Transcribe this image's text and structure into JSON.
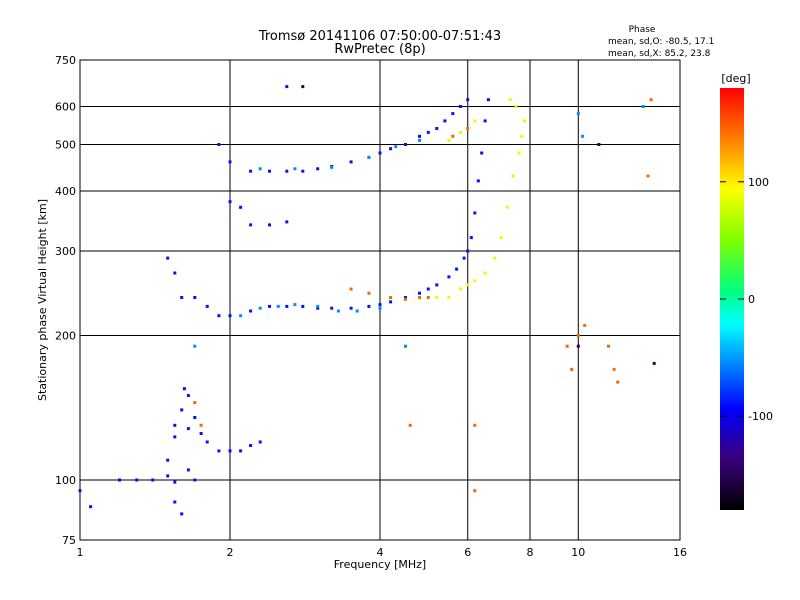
{
  "chart_data": {
    "type": "scatter",
    "title": "Tromsø 20141106 07:50:00-07:51:43",
    "subtitle": "RwPretec (8p)",
    "phase_stats": {
      "header": "Phase",
      "line_o": "mean, sd,O: -80.5, 17.1",
      "line_x": "mean, sd,X:  85.2, 23.8"
    },
    "xlabel": "Frequency [MHz]",
    "ylabel": "Stationary phase Virtual Height [km]",
    "x_scale": "log",
    "y_scale": "log",
    "xlim": [
      1,
      16
    ],
    "ylim": [
      75,
      750
    ],
    "x_ticks": [
      1,
      2,
      4,
      6,
      8,
      10,
      16
    ],
    "x_tick_labels": [
      "1",
      "2",
      "4",
      "6",
      "8",
      "10",
      "16"
    ],
    "y_ticks": [
      75,
      100,
      200,
      300,
      400,
      500,
      600,
      750
    ],
    "y_tick_labels": [
      "75",
      "100",
      "200",
      "300",
      "400",
      "500",
      "600",
      "750"
    ],
    "grid": true,
    "colorbar": {
      "label": "[deg]",
      "range": [
        -180,
        180
      ],
      "ticks": [
        100,
        0,
        -100
      ],
      "tick_labels": [
        "100",
        "0",
        "-100"
      ],
      "colormap": "rainbow"
    },
    "series": [
      {
        "color_deg": -95,
        "points": [
          [
            1.0,
            95
          ],
          [
            1.05,
            88
          ],
          [
            1.2,
            100
          ],
          [
            1.3,
            100
          ],
          [
            1.4,
            100
          ],
          [
            1.5,
            102
          ],
          [
            1.55,
            99
          ],
          [
            1.55,
            130
          ],
          [
            1.6,
            140
          ],
          [
            1.62,
            155
          ],
          [
            1.65,
            150
          ],
          [
            1.7,
            135
          ],
          [
            1.75,
            125
          ],
          [
            1.8,
            120
          ],
          [
            1.9,
            115
          ],
          [
            2.0,
            115
          ],
          [
            2.1,
            115
          ],
          [
            2.2,
            118
          ],
          [
            2.3,
            120
          ],
          [
            1.5,
            110
          ],
          [
            1.55,
            90
          ],
          [
            1.6,
            85
          ],
          [
            1.65,
            105
          ],
          [
            1.7,
            100
          ],
          [
            1.55,
            123
          ],
          [
            1.65,
            128
          ],
          [
            1.5,
            290
          ],
          [
            1.55,
            270
          ],
          [
            1.6,
            240
          ],
          [
            1.7,
            240
          ],
          [
            1.8,
            230
          ],
          [
            1.9,
            220
          ],
          [
            2.0,
            220
          ],
          [
            2.2,
            225
          ],
          [
            2.4,
            230
          ],
          [
            2.6,
            230
          ],
          [
            2.8,
            230
          ],
          [
            3.0,
            228
          ],
          [
            3.2,
            228
          ],
          [
            3.5,
            228
          ],
          [
            3.8,
            230
          ],
          [
            4.0,
            232
          ],
          [
            4.2,
            235
          ],
          [
            4.5,
            240
          ],
          [
            4.8,
            245
          ],
          [
            5.0,
            250
          ],
          [
            5.2,
            255
          ],
          [
            5.5,
            265
          ],
          [
            5.7,
            275
          ],
          [
            5.9,
            290
          ],
          [
            6.0,
            300
          ],
          [
            6.1,
            320
          ],
          [
            6.2,
            360
          ],
          [
            6.3,
            420
          ],
          [
            6.4,
            480
          ],
          [
            6.5,
            560
          ],
          [
            6.6,
            620
          ],
          [
            2.0,
            460
          ],
          [
            2.2,
            440
          ],
          [
            2.4,
            440
          ],
          [
            2.6,
            440
          ],
          [
            2.8,
            440
          ],
          [
            3.0,
            445
          ],
          [
            3.2,
            450
          ],
          [
            3.5,
            460
          ],
          [
            3.8,
            470
          ],
          [
            4.0,
            480
          ],
          [
            4.2,
            490
          ],
          [
            4.5,
            500
          ],
          [
            4.8,
            520
          ],
          [
            5.0,
            530
          ],
          [
            5.2,
            540
          ],
          [
            5.4,
            560
          ],
          [
            5.6,
            580
          ],
          [
            5.8,
            600
          ],
          [
            6.0,
            620
          ],
          [
            2.2,
            340
          ],
          [
            2.4,
            340
          ],
          [
            2.6,
            345
          ],
          [
            2.0,
            380
          ],
          [
            2.1,
            370
          ],
          [
            2.6,
            660
          ],
          [
            1.9,
            500
          ]
        ]
      },
      {
        "color_deg": -60,
        "points": [
          [
            2.1,
            220
          ],
          [
            2.3,
            228
          ],
          [
            2.5,
            230
          ],
          [
            2.7,
            232
          ],
          [
            3.0,
            230
          ],
          [
            3.3,
            225
          ],
          [
            3.6,
            225
          ],
          [
            4.0,
            228
          ],
          [
            2.3,
            445
          ],
          [
            2.7,
            445
          ],
          [
            3.2,
            448
          ],
          [
            3.8,
            470
          ],
          [
            4.3,
            495
          ],
          [
            4.8,
            510
          ],
          [
            1.7,
            190
          ],
          [
            4.5,
            190
          ],
          [
            10.0,
            580
          ],
          [
            10.2,
            520
          ],
          [
            13.5,
            600
          ]
        ]
      },
      {
        "color_deg": 110,
        "points": [
          [
            5.5,
            240
          ],
          [
            5.8,
            250
          ],
          [
            6.0,
            255
          ],
          [
            6.2,
            260
          ],
          [
            6.5,
            270
          ],
          [
            6.8,
            290
          ],
          [
            7.0,
            320
          ],
          [
            7.2,
            370
          ],
          [
            7.4,
            430
          ],
          [
            7.6,
            480
          ],
          [
            7.7,
            520
          ],
          [
            7.8,
            560
          ],
          [
            7.5,
            600
          ],
          [
            5.5,
            510
          ],
          [
            5.8,
            530
          ],
          [
            6.2,
            560
          ],
          [
            7.3,
            620
          ],
          [
            5.2,
            240
          ]
        ]
      },
      {
        "color_deg": 150,
        "points": [
          [
            3.5,
            250
          ],
          [
            3.8,
            245
          ],
          [
            4.2,
            240
          ],
          [
            4.5,
            238
          ],
          [
            4.8,
            240
          ],
          [
            5.0,
            240
          ],
          [
            1.7,
            145
          ],
          [
            1.75,
            130
          ],
          [
            6.0,
            540
          ],
          [
            5.6,
            520
          ],
          [
            4.6,
            130
          ],
          [
            6.2,
            130
          ],
          [
            6.2,
            95
          ],
          [
            9.5,
            190
          ],
          [
            9.7,
            170
          ],
          [
            10.0,
            200
          ],
          [
            10.3,
            210
          ],
          [
            11.5,
            190
          ],
          [
            11.8,
            170
          ],
          [
            12.0,
            160
          ],
          [
            14.0,
            620
          ],
          [
            13.8,
            430
          ]
        ]
      },
      {
        "color_deg": -170,
        "points": [
          [
            2.8,
            660
          ],
          [
            11.0,
            500
          ],
          [
            14.2,
            175
          ],
          [
            10.0,
            190
          ]
        ]
      }
    ]
  }
}
